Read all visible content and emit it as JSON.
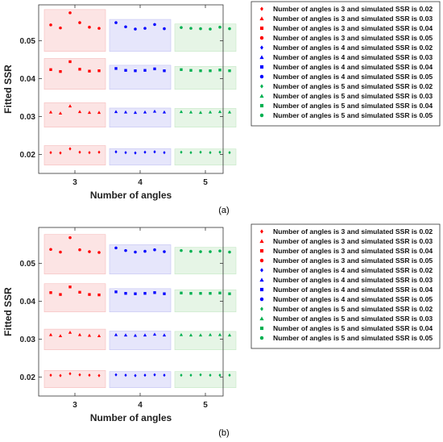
{
  "chart_data": [
    {
      "panel_label": "(a)",
      "type": "scatter",
      "xlabel": "Number of angles",
      "ylabel": "Fitted SSR",
      "x_ticks": [
        "3",
        "4",
        "5"
      ],
      "y_ticks": [
        "0.02",
        "0.03",
        "0.04",
        "0.05"
      ],
      "ylim": [
        0.015,
        0.0595
      ],
      "grid": false,
      "legend_position": "right-outside",
      "series": [
        {
          "name": "Number of angles is 3 and simulated SSR is 0.02",
          "angle": 3,
          "simulated_ssr": 0.02,
          "marker": "diamond",
          "color": "#ff0000",
          "values": [
            0.0205,
            0.0204,
            0.0215,
            0.0206,
            0.0205,
            0.0206
          ]
        },
        {
          "name": "Number of angles is 3 and simulated SSR is 0.03",
          "angle": 3,
          "simulated_ssr": 0.03,
          "marker": "triangle",
          "color": "#ff0000",
          "values": [
            0.0312,
            0.0309,
            0.0328,
            0.0313,
            0.0311,
            0.0311
          ]
        },
        {
          "name": "Number of angles is 3 and simulated SSR is 0.04",
          "angle": 3,
          "simulated_ssr": 0.04,
          "marker": "square",
          "color": "#ff0000",
          "values": [
            0.0424,
            0.0419,
            0.0445,
            0.0425,
            0.042,
            0.0421
          ]
        },
        {
          "name": "Number of angles is 3 and simulated SSR is 0.05",
          "angle": 3,
          "simulated_ssr": 0.05,
          "marker": "circle",
          "color": "#ff0000",
          "values": [
            0.0542,
            0.0534,
            0.0574,
            0.0548,
            0.0536,
            0.0533
          ]
        },
        {
          "name": "Number of angles is 4 and simulated SSR is 0.02",
          "angle": 4,
          "simulated_ssr": 0.02,
          "marker": "diamond",
          "color": "#0000ff",
          "values": [
            0.0207,
            0.0205,
            0.0204,
            0.0206,
            0.0207,
            0.0205
          ]
        },
        {
          "name": "Number of angles is 4 and simulated SSR is 0.03",
          "angle": 4,
          "simulated_ssr": 0.03,
          "marker": "triangle",
          "color": "#0000ff",
          "values": [
            0.0313,
            0.0312,
            0.0311,
            0.0312,
            0.0314,
            0.0312
          ]
        },
        {
          "name": "Number of angles is 4 and simulated SSR is 0.04",
          "angle": 4,
          "simulated_ssr": 0.04,
          "marker": "square",
          "color": "#0000ff",
          "values": [
            0.0427,
            0.0422,
            0.0421,
            0.0422,
            0.0426,
            0.0421
          ]
        },
        {
          "name": "Number of angles is 4 and simulated SSR is 0.05",
          "angle": 4,
          "simulated_ssr": 0.05,
          "marker": "circle",
          "color": "#0000ff",
          "values": [
            0.0548,
            0.0537,
            0.0531,
            0.0533,
            0.0543,
            0.0532
          ]
        },
        {
          "name": "Number of angles is 5 and simulated SSR is 0.02",
          "angle": 5,
          "simulated_ssr": 0.02,
          "marker": "diamond",
          "color": "#00b050",
          "values": [
            0.0206,
            0.0205,
            0.0206,
            0.0205,
            0.0206,
            0.0205
          ]
        },
        {
          "name": "Number of angles is 5 and simulated SSR is 0.03",
          "angle": 5,
          "simulated_ssr": 0.03,
          "marker": "triangle",
          "color": "#00b050",
          "values": [
            0.0313,
            0.0312,
            0.0311,
            0.0312,
            0.0313,
            0.0312
          ]
        },
        {
          "name": "Number of angles is 5 and simulated SSR is 0.04",
          "angle": 5,
          "simulated_ssr": 0.04,
          "marker": "square",
          "color": "#00b050",
          "values": [
            0.0424,
            0.0422,
            0.0421,
            0.0421,
            0.0423,
            0.0421
          ]
        },
        {
          "name": "Number of angles is 5 and simulated SSR is 0.05",
          "angle": 5,
          "simulated_ssr": 0.05,
          "marker": "circle",
          "color": "#00b050",
          "values": [
            0.0535,
            0.0533,
            0.0532,
            0.0531,
            0.0536,
            0.0532
          ]
        }
      ]
    },
    {
      "panel_label": "(b)",
      "type": "scatter",
      "xlabel": "Number of angles",
      "ylabel": "Fitted SSR",
      "x_ticks": [
        "3",
        "4",
        "5"
      ],
      "y_ticks": [
        "0.02",
        "0.03",
        "0.04",
        "0.05"
      ],
      "ylim": [
        0.015,
        0.0595
      ],
      "grid": false,
      "legend_position": "right-outside",
      "series": [
        {
          "name": "Number of angles is 3 and simulated SSR is 0.02",
          "angle": 3,
          "simulated_ssr": 0.02,
          "marker": "diamond",
          "color": "#ff0000",
          "values": [
            0.0205,
            0.0204,
            0.0209,
            0.0206,
            0.0205,
            0.0204
          ]
        },
        {
          "name": "Number of angles is 3 and simulated SSR is 0.03",
          "angle": 3,
          "simulated_ssr": 0.03,
          "marker": "triangle",
          "color": "#ff0000",
          "values": [
            0.0312,
            0.0309,
            0.0318,
            0.0312,
            0.031,
            0.0309
          ]
        },
        {
          "name": "Number of angles is 3 and simulated SSR is 0.04",
          "angle": 3,
          "simulated_ssr": 0.04,
          "marker": "square",
          "color": "#ff0000",
          "values": [
            0.0423,
            0.0418,
            0.0438,
            0.0424,
            0.0418,
            0.0417
          ]
        },
        {
          "name": "Number of angles is 3 and simulated SSR is 0.05",
          "angle": 3,
          "simulated_ssr": 0.05,
          "marker": "circle",
          "color": "#ff0000",
          "values": [
            0.0537,
            0.053,
            0.0568,
            0.0536,
            0.0531,
            0.0529
          ]
        },
        {
          "name": "Number of angles is 4 and simulated SSR is 0.02",
          "angle": 4,
          "simulated_ssr": 0.02,
          "marker": "diamond",
          "color": "#0000ff",
          "values": [
            0.0206,
            0.0205,
            0.0204,
            0.0205,
            0.0206,
            0.0205
          ]
        },
        {
          "name": "Number of angles is 4 and simulated SSR is 0.03",
          "angle": 4,
          "simulated_ssr": 0.03,
          "marker": "triangle",
          "color": "#0000ff",
          "values": [
            0.0312,
            0.0311,
            0.031,
            0.0311,
            0.0313,
            0.0311
          ]
        },
        {
          "name": "Number of angles is 4 and simulated SSR is 0.04",
          "angle": 4,
          "simulated_ssr": 0.04,
          "marker": "square",
          "color": "#0000ff",
          "values": [
            0.0425,
            0.0421,
            0.042,
            0.0421,
            0.0423,
            0.042
          ]
        },
        {
          "name": "Number of angles is 4 and simulated SSR is 0.05",
          "angle": 4,
          "simulated_ssr": 0.05,
          "marker": "circle",
          "color": "#0000ff",
          "values": [
            0.0541,
            0.0534,
            0.053,
            0.0532,
            0.0536,
            0.0531
          ]
        },
        {
          "name": "Number of angles is 5 and simulated SSR is 0.02",
          "angle": 5,
          "simulated_ssr": 0.02,
          "marker": "diamond",
          "color": "#00b050",
          "values": [
            0.0205,
            0.0205,
            0.0206,
            0.0205,
            0.0205,
            0.0205
          ]
        },
        {
          "name": "Number of angles is 5 and simulated SSR is 0.03",
          "angle": 5,
          "simulated_ssr": 0.03,
          "marker": "triangle",
          "color": "#00b050",
          "values": [
            0.0312,
            0.0311,
            0.0311,
            0.0312,
            0.0312,
            0.0311
          ]
        },
        {
          "name": "Number of angles is 5 and simulated SSR is 0.04",
          "angle": 5,
          "simulated_ssr": 0.04,
          "marker": "square",
          "color": "#00b050",
          "values": [
            0.0422,
            0.0421,
            0.0421,
            0.0421,
            0.0422,
            0.042
          ]
        },
        {
          "name": "Number of angles is 5 and simulated SSR is 0.05",
          "angle": 5,
          "simulated_ssr": 0.05,
          "marker": "circle",
          "color": "#00b050",
          "values": [
            0.0534,
            0.0532,
            0.0531,
            0.0531,
            0.0533,
            0.053
          ]
        }
      ]
    }
  ]
}
